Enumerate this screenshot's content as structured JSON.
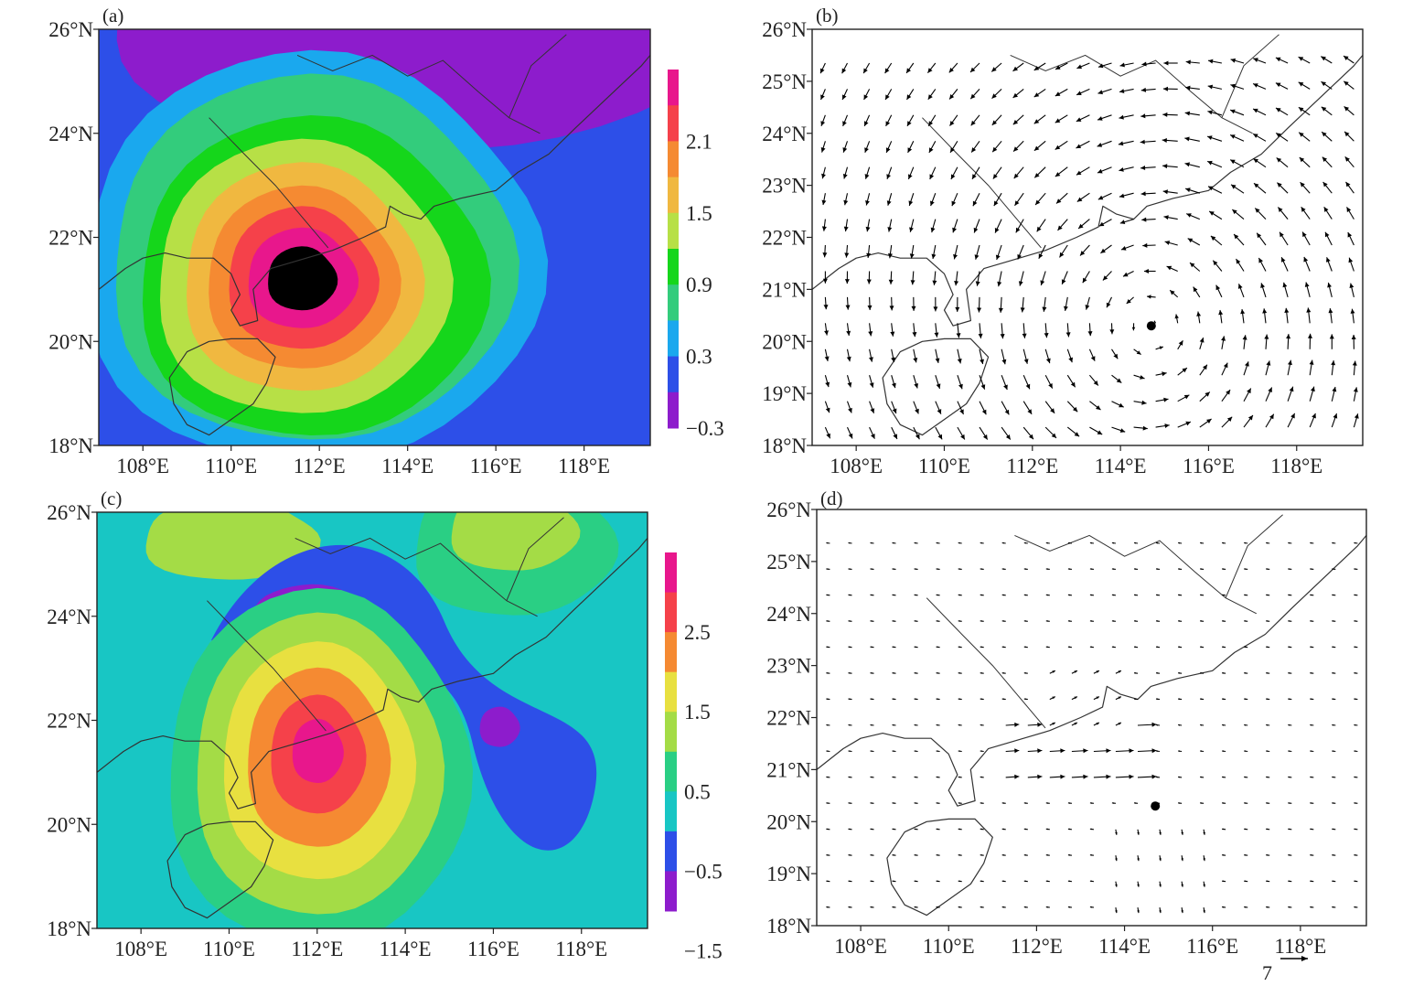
{
  "panels": [
    {
      "id": "a",
      "label": "(a)",
      "kind": "contour",
      "colorbar": {
        "labels": [
          "2.1",
          "1.5",
          "0.9",
          "0.3",
          "−0.3"
        ],
        "colors": [
          "#e8178c",
          "#f5414a",
          "#f58a32",
          "#f0b840",
          "#b7e046",
          "#15d61b",
          "#33cc7c",
          "#1aa8ee",
          "#2d4fe8",
          "#8d1ccc"
        ]
      }
    },
    {
      "id": "b",
      "label": "(b)",
      "kind": "vector"
    },
    {
      "id": "c",
      "label": "(c)",
      "kind": "contour",
      "colorbar": {
        "labels": [
          "2.5",
          "1.5",
          "0.5",
          "−0.5",
          "−1.5"
        ],
        "colors": [
          "#e8178c",
          "#f5414a",
          "#f58a32",
          "#e8e040",
          "#a4dc46",
          "#2acf84",
          "#18c6c4",
          "#2d4fe8",
          "#8d1ccc"
        ]
      }
    },
    {
      "id": "d",
      "label": "(d)",
      "kind": "vector"
    }
  ],
  "axes": {
    "lon_ticks": [
      "108°E",
      "110°E",
      "112°E",
      "114°E",
      "116°E",
      "118°E"
    ],
    "lat_ticks_ac": [
      "26°N",
      "24°N",
      "22°N",
      "20°N",
      "18°N"
    ],
    "lat_ticks_bd": [
      "26°N",
      "25°N",
      "24°N",
      "23°N",
      "22°N",
      "21°N",
      "20°N",
      "19°N",
      "18°N"
    ],
    "lon_range": [
      107,
      119.5
    ],
    "lat_range": [
      18,
      26
    ]
  },
  "reference_vector": {
    "value": "7"
  },
  "typhoon_center": {
    "lon": 114.7,
    "lat": 20.3
  },
  "icons": {
    "typhoon_center": "filled-circle",
    "wind": "arrow-vector"
  }
}
